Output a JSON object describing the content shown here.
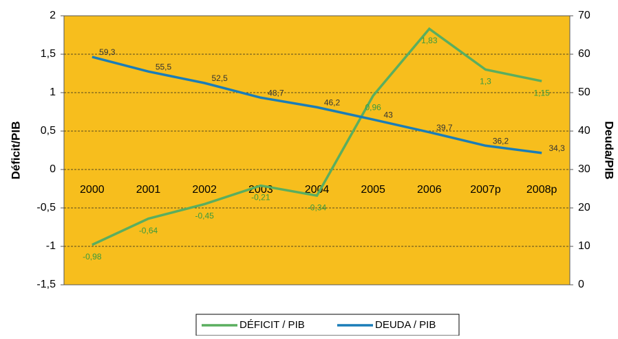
{
  "chart_data": {
    "type": "line",
    "categories": [
      "2000",
      "2001",
      "2002",
      "2003",
      "2004",
      "2005",
      "2006",
      "2007p",
      "2008p"
    ],
    "series": [
      {
        "name": "DÉFICIT / PIB",
        "color": "#5aae5f",
        "axis": "y",
        "values": [
          -0.98,
          -0.64,
          -0.45,
          -0.21,
          -0.34,
          0.96,
          1.83,
          1.3,
          1.15
        ],
        "value_labels": [
          "-0,98",
          "-0,64",
          "-0,45",
          "-0,21",
          "-0,34",
          "0,96",
          "1,83",
          "1,3",
          "1,15"
        ]
      },
      {
        "name": "DEUDA / PIB",
        "color": "#1a7db8",
        "axis": "y2",
        "values": [
          59.3,
          55.5,
          52.5,
          48.7,
          46.2,
          43,
          39.7,
          36.2,
          34.3
        ],
        "value_labels": [
          "59,3",
          "55,5",
          "52,5",
          "48,7",
          "46,2",
          "43",
          "39,7",
          "36,2",
          "34,3"
        ]
      }
    ],
    "ylabel": "Déficit/PIB",
    "y2label": "Deuda/PIB",
    "ylim": [
      -1.5,
      2
    ],
    "yticks": [
      {
        "value": -1.5,
        "label": "-1,5"
      },
      -1,
      {
        "value": -0.5,
        "label": "-0,5"
      },
      0,
      {
        "value": 0.5,
        "label": "0,5"
      },
      1,
      {
        "value": 1.5,
        "label": "1,5"
      },
      2
    ],
    "y2lim": [
      0,
      70
    ],
    "y2ticks": [
      0,
      10,
      20,
      30,
      40,
      50,
      60,
      70
    ],
    "grid": true,
    "legend": "bottom",
    "background": "#f7be1d"
  }
}
